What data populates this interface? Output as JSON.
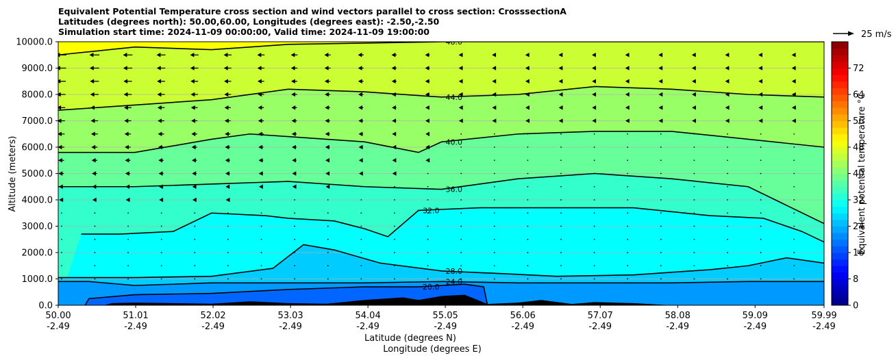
{
  "chart_data": {
    "type": "heatmap",
    "title_lines": [
      "Equivalent Potential Temperature cross section and wind vectors parallel to cross section: CrosssectionA",
      "Latitudes (degrees north): 50.00,60.00, Longitudes (degrees east): -2.50,-2.50",
      "Simulation start time: 2024-11-09 00:00:00, Valid time: 2024-11-09 19:00:00"
    ],
    "xlabel_lat": "Latitude (degrees N)",
    "xlabel_lon": "Longitude (degrees E)",
    "ylabel": "Altitude (meters)",
    "colorbar_label": "Equivalent potential temperature $^\\circ$C",
    "colorbar_label_display": "Equivalent potential temperature °C",
    "quiver_key": "25 m/s",
    "xlim": [
      50.0,
      59.99
    ],
    "ylim": [
      0,
      10000
    ],
    "x_ticks": [
      {
        "lat": "50.00",
        "lon": "-2.49",
        "x": 50.0
      },
      {
        "lat": "51.01",
        "lon": "-2.49",
        "x": 51.01
      },
      {
        "lat": "52.02",
        "lon": "-2.49",
        "x": 52.02
      },
      {
        "lat": "53.03",
        "lon": "-2.49",
        "x": 53.03
      },
      {
        "lat": "54.04",
        "lon": "-2.49",
        "x": 54.04
      },
      {
        "lat": "55.05",
        "lon": "-2.49",
        "x": 55.05
      },
      {
        "lat": "56.06",
        "lon": "-2.49",
        "x": 56.06
      },
      {
        "lat": "57.07",
        "lon": "-2.49",
        "x": 57.07
      },
      {
        "lat": "58.08",
        "lon": "-2.49",
        "x": 58.08
      },
      {
        "lat": "59.09",
        "lon": "-2.49",
        "x": 59.09
      },
      {
        "lat": "59.99",
        "lon": "-2.49",
        "x": 59.99
      }
    ],
    "y_ticks": [
      "0.0",
      "1000.0",
      "2000.0",
      "3000.0",
      "4000.0",
      "5000.0",
      "6000.0",
      "7000.0",
      "8000.0",
      "9000.0",
      "10000.0"
    ],
    "y_tick_values": [
      0,
      1000,
      2000,
      3000,
      4000,
      5000,
      6000,
      7000,
      8000,
      9000,
      10000
    ],
    "colorbar_ticks": [
      "0",
      "8",
      "16",
      "24",
      "32",
      "40",
      "48",
      "56",
      "64",
      "72"
    ],
    "colorbar_tick_values": [
      0,
      8,
      16,
      24,
      32,
      40,
      48,
      56,
      64,
      72
    ],
    "colorbar_range": [
      0,
      80
    ],
    "colorbar_step": 2,
    "bands": [
      {
        "level": 16,
        "alt_start": 0,
        "alt_end": 0,
        "alt_mid": 300
      },
      {
        "level": 20,
        "alt_start": 100,
        "alt_end": 800,
        "alt_mid": 800
      },
      {
        "level": 24,
        "alt_start": 900,
        "alt_end": 900,
        "alt_mid": 950
      },
      {
        "level": 28,
        "alt_start": 1000,
        "alt_end": 1600,
        "alt_mid": 1400
      },
      {
        "level": 32,
        "alt_start": 2500,
        "alt_end": 3100,
        "alt_mid": 3600
      },
      {
        "level": 36,
        "alt_start": 4500,
        "alt_end": 4500,
        "alt_mid": 4600
      },
      {
        "level": 40,
        "alt_start": 5800,
        "alt_end": 6000,
        "alt_mid": 6300
      },
      {
        "level": 44,
        "alt_start": 7400,
        "alt_end": 7900,
        "alt_mid": 8000
      },
      {
        "level": 48,
        "alt_start": 9500,
        "alt_end": 9950,
        "alt_mid": 9900
      }
    ],
    "contours": [
      {
        "level": 20,
        "label": "20.0",
        "points": [
          [
            50.35,
            0
          ],
          [
            50.4,
            250
          ],
          [
            51,
            400
          ],
          [
            52,
            450
          ],
          [
            53,
            600
          ],
          [
            54,
            700
          ],
          [
            54.7,
            700
          ],
          [
            55.3,
            800
          ],
          [
            55.55,
            700
          ],
          [
            55.6,
            0
          ]
        ]
      },
      {
        "level": 24,
        "label": "24.0",
        "points": [
          [
            50.0,
            900
          ],
          [
            50.4,
            900
          ],
          [
            51.0,
            750
          ],
          [
            52.0,
            850
          ],
          [
            53.0,
            850
          ],
          [
            54.0,
            850
          ],
          [
            55.0,
            900
          ],
          [
            56.0,
            850
          ],
          [
            57.0,
            850
          ],
          [
            58.0,
            850
          ],
          [
            59.0,
            900
          ],
          [
            59.99,
            900
          ]
        ]
      },
      {
        "level": 28,
        "label": "28.0",
        "points": [
          [
            50.0,
            1050
          ],
          [
            51.0,
            1050
          ],
          [
            52.0,
            1100
          ],
          [
            52.8,
            1400
          ],
          [
            53.2,
            2300
          ],
          [
            53.6,
            2100
          ],
          [
            54.2,
            1600
          ],
          [
            55.0,
            1300
          ],
          [
            55.8,
            1200
          ],
          [
            56.5,
            1100
          ],
          [
            57.5,
            1150
          ],
          [
            58.5,
            1350
          ],
          [
            59.0,
            1500
          ],
          [
            59.5,
            1800
          ],
          [
            59.99,
            1600
          ]
        ]
      },
      {
        "level": 32,
        "label": "32.0",
        "points": [
          [
            50.3,
            2700
          ],
          [
            50.8,
            2700
          ],
          [
            51.5,
            2800
          ],
          [
            52.0,
            3500
          ],
          [
            52.7,
            3400
          ],
          [
            53.0,
            3300
          ],
          [
            53.6,
            3200
          ],
          [
            54.0,
            2900
          ],
          [
            54.3,
            2600
          ],
          [
            54.7,
            3600
          ],
          [
            55.5,
            3700
          ],
          [
            56.5,
            3700
          ],
          [
            57.5,
            3700
          ],
          [
            58.5,
            3400
          ],
          [
            59.2,
            3300
          ],
          [
            59.7,
            2800
          ],
          [
            59.99,
            2400
          ]
        ]
      },
      {
        "level": 36,
        "label": "36.0",
        "points": [
          [
            50.0,
            4500
          ],
          [
            51.0,
            4500
          ],
          [
            52.0,
            4600
          ],
          [
            53.0,
            4700
          ],
          [
            54.0,
            4500
          ],
          [
            55.0,
            4400
          ],
          [
            56.0,
            4800
          ],
          [
            57.0,
            5000
          ],
          [
            58.0,
            4800
          ],
          [
            59.0,
            4500
          ],
          [
            59.99,
            3100
          ]
        ]
      },
      {
        "level": 40,
        "label": "40.0",
        "points": [
          [
            50.0,
            5800
          ],
          [
            51.0,
            5800
          ],
          [
            52.0,
            6300
          ],
          [
            52.5,
            6500
          ],
          [
            53.0,
            6400
          ],
          [
            54.0,
            6200
          ],
          [
            54.7,
            5800
          ],
          [
            55.0,
            6200
          ],
          [
            56.0,
            6500
          ],
          [
            57.0,
            6600
          ],
          [
            58.0,
            6600
          ],
          [
            59.0,
            6300
          ],
          [
            59.99,
            6000
          ]
        ]
      },
      {
        "level": 44,
        "label": "44.0",
        "points": [
          [
            50.0,
            7400
          ],
          [
            51.0,
            7600
          ],
          [
            52.0,
            7800
          ],
          [
            53.0,
            8200
          ],
          [
            54.0,
            8100
          ],
          [
            55.0,
            7900
          ],
          [
            56.0,
            8000
          ],
          [
            57.0,
            8300
          ],
          [
            58.0,
            8200
          ],
          [
            59.0,
            8000
          ],
          [
            59.99,
            7900
          ]
        ]
      },
      {
        "level": 48,
        "label": "48.0",
        "points": [
          [
            50.0,
            9500
          ],
          [
            51.0,
            9800
          ],
          [
            52.0,
            9700
          ],
          [
            53.0,
            9900
          ],
          [
            54.0,
            9950
          ],
          [
            55.0,
            10000
          ],
          [
            56.0,
            10000
          ],
          [
            57.0,
            10000
          ],
          [
            58.0,
            10000
          ],
          [
            59.0,
            10000
          ],
          [
            59.99,
            10000
          ]
        ]
      }
    ],
    "terrain": [
      [
        50.3,
        0
      ],
      [
        50.6,
        0
      ],
      [
        50.7,
        80
      ],
      [
        51.0,
        100
      ],
      [
        51.5,
        80
      ],
      [
        52.0,
        60
      ],
      [
        52.5,
        150
      ],
      [
        53.0,
        80
      ],
      [
        53.5,
        60
      ],
      [
        54.0,
        200
      ],
      [
        54.5,
        300
      ],
      [
        54.7,
        200
      ],
      [
        55.0,
        350
      ],
      [
        55.3,
        400
      ],
      [
        55.6,
        50
      ],
      [
        56.0,
        100
      ],
      [
        56.3,
        200
      ],
      [
        56.7,
        50
      ],
      [
        57.0,
        120
      ],
      [
        57.5,
        80
      ],
      [
        58.0,
        0
      ]
    ]
  }
}
